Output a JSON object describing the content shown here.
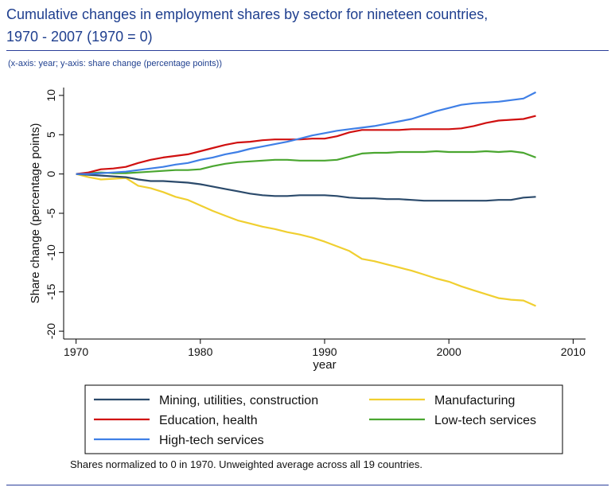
{
  "header": {
    "title_line1": "Cumulative changes in employment shares by sector for nineteen countries,",
    "title_line2": "1970 - 2007 (1970 = 0)",
    "subtitle": "(x-axis: year; y-axis: share change (percentage points))"
  },
  "footer": {
    "note": "Shares normalized to 0 in 1970. Unweighted average across all 19 countries."
  },
  "colors": {
    "mining": "#2b4a6b",
    "manufacturing": "#f0cf30",
    "education": "#d01010",
    "lowtech": "#4aa630",
    "hightech": "#3f7fe6",
    "title": "#1f3f8f"
  },
  "chart_data": {
    "type": "line",
    "title": "Cumulative changes in employment shares by sector for nineteen countries, 1970 - 2007 (1970 = 0)",
    "xlabel": "year",
    "ylabel": "Share change (percentage points)",
    "xlim": [
      1969,
      2011
    ],
    "ylim": [
      -21,
      11
    ],
    "xticks": [
      1970,
      1980,
      1990,
      2000,
      2010
    ],
    "yticks": [
      10,
      5,
      0,
      -5,
      -10,
      -15,
      -20
    ],
    "grid": false,
    "legend_position": "bottom",
    "x": [
      1970,
      1971,
      1972,
      1973,
      1974,
      1975,
      1976,
      1977,
      1978,
      1979,
      1980,
      1981,
      1982,
      1983,
      1984,
      1985,
      1986,
      1987,
      1988,
      1989,
      1990,
      1991,
      1992,
      1993,
      1994,
      1995,
      1996,
      1997,
      1998,
      1999,
      2000,
      2001,
      2002,
      2003,
      2004,
      2005,
      2006,
      2007
    ],
    "series": [
      {
        "key": "mining",
        "name": "Mining, utilities, construction",
        "values": [
          0,
          -0.1,
          -0.2,
          -0.3,
          -0.4,
          -0.7,
          -0.9,
          -0.9,
          -1.0,
          -1.1,
          -1.3,
          -1.6,
          -1.9,
          -2.2,
          -2.5,
          -2.7,
          -2.8,
          -2.8,
          -2.7,
          -2.7,
          -2.7,
          -2.8,
          -3.0,
          -3.1,
          -3.1,
          -3.2,
          -3.2,
          -3.3,
          -3.4,
          -3.4,
          -3.4,
          -3.4,
          -3.4,
          -3.4,
          -3.3,
          -3.3,
          -3.0,
          -2.9
        ]
      },
      {
        "key": "manufacturing",
        "name": "Manufacturing",
        "values": [
          0,
          -0.4,
          -0.7,
          -0.6,
          -0.5,
          -1.5,
          -1.8,
          -2.3,
          -2.9,
          -3.3,
          -4.0,
          -4.7,
          -5.3,
          -5.9,
          -6.3,
          -6.7,
          -7.0,
          -7.4,
          -7.7,
          -8.1,
          -8.6,
          -9.2,
          -9.8,
          -10.8,
          -11.1,
          -11.5,
          -11.9,
          -12.3,
          -12.8,
          -13.3,
          -13.7,
          -14.3,
          -14.8,
          -15.3,
          -15.8,
          -16.0,
          -16.1,
          -16.8
        ]
      },
      {
        "key": "education",
        "name": "Education, health",
        "values": [
          0,
          0.2,
          0.6,
          0.7,
          0.9,
          1.4,
          1.8,
          2.1,
          2.3,
          2.5,
          2.9,
          3.3,
          3.7,
          4.0,
          4.1,
          4.3,
          4.4,
          4.4,
          4.4,
          4.5,
          4.5,
          4.8,
          5.3,
          5.6,
          5.6,
          5.6,
          5.6,
          5.7,
          5.7,
          5.7,
          5.7,
          5.8,
          6.1,
          6.5,
          6.8,
          6.9,
          7.0,
          7.4
        ]
      },
      {
        "key": "lowtech",
        "name": "Low-tech services",
        "values": [
          0,
          0.1,
          0.2,
          0.1,
          0.1,
          0.2,
          0.3,
          0.4,
          0.5,
          0.5,
          0.6,
          1.0,
          1.3,
          1.5,
          1.6,
          1.7,
          1.8,
          1.8,
          1.7,
          1.7,
          1.7,
          1.8,
          2.2,
          2.6,
          2.7,
          2.7,
          2.8,
          2.8,
          2.8,
          2.9,
          2.8,
          2.8,
          2.8,
          2.9,
          2.8,
          2.9,
          2.7,
          2.1
        ]
      },
      {
        "key": "hightech",
        "name": "High-tech services",
        "values": [
          0,
          0.0,
          0.1,
          0.2,
          0.3,
          0.5,
          0.7,
          0.9,
          1.2,
          1.4,
          1.8,
          2.1,
          2.5,
          2.8,
          3.2,
          3.5,
          3.8,
          4.1,
          4.5,
          4.9,
          5.2,
          5.5,
          5.7,
          5.9,
          6.1,
          6.4,
          6.7,
          7.0,
          7.5,
          8.0,
          8.4,
          8.8,
          9.0,
          9.1,
          9.2,
          9.4,
          9.6,
          10.4
        ]
      }
    ],
    "legend_order": [
      "mining",
      "manufacturing",
      "education",
      "lowtech",
      "hightech"
    ]
  }
}
